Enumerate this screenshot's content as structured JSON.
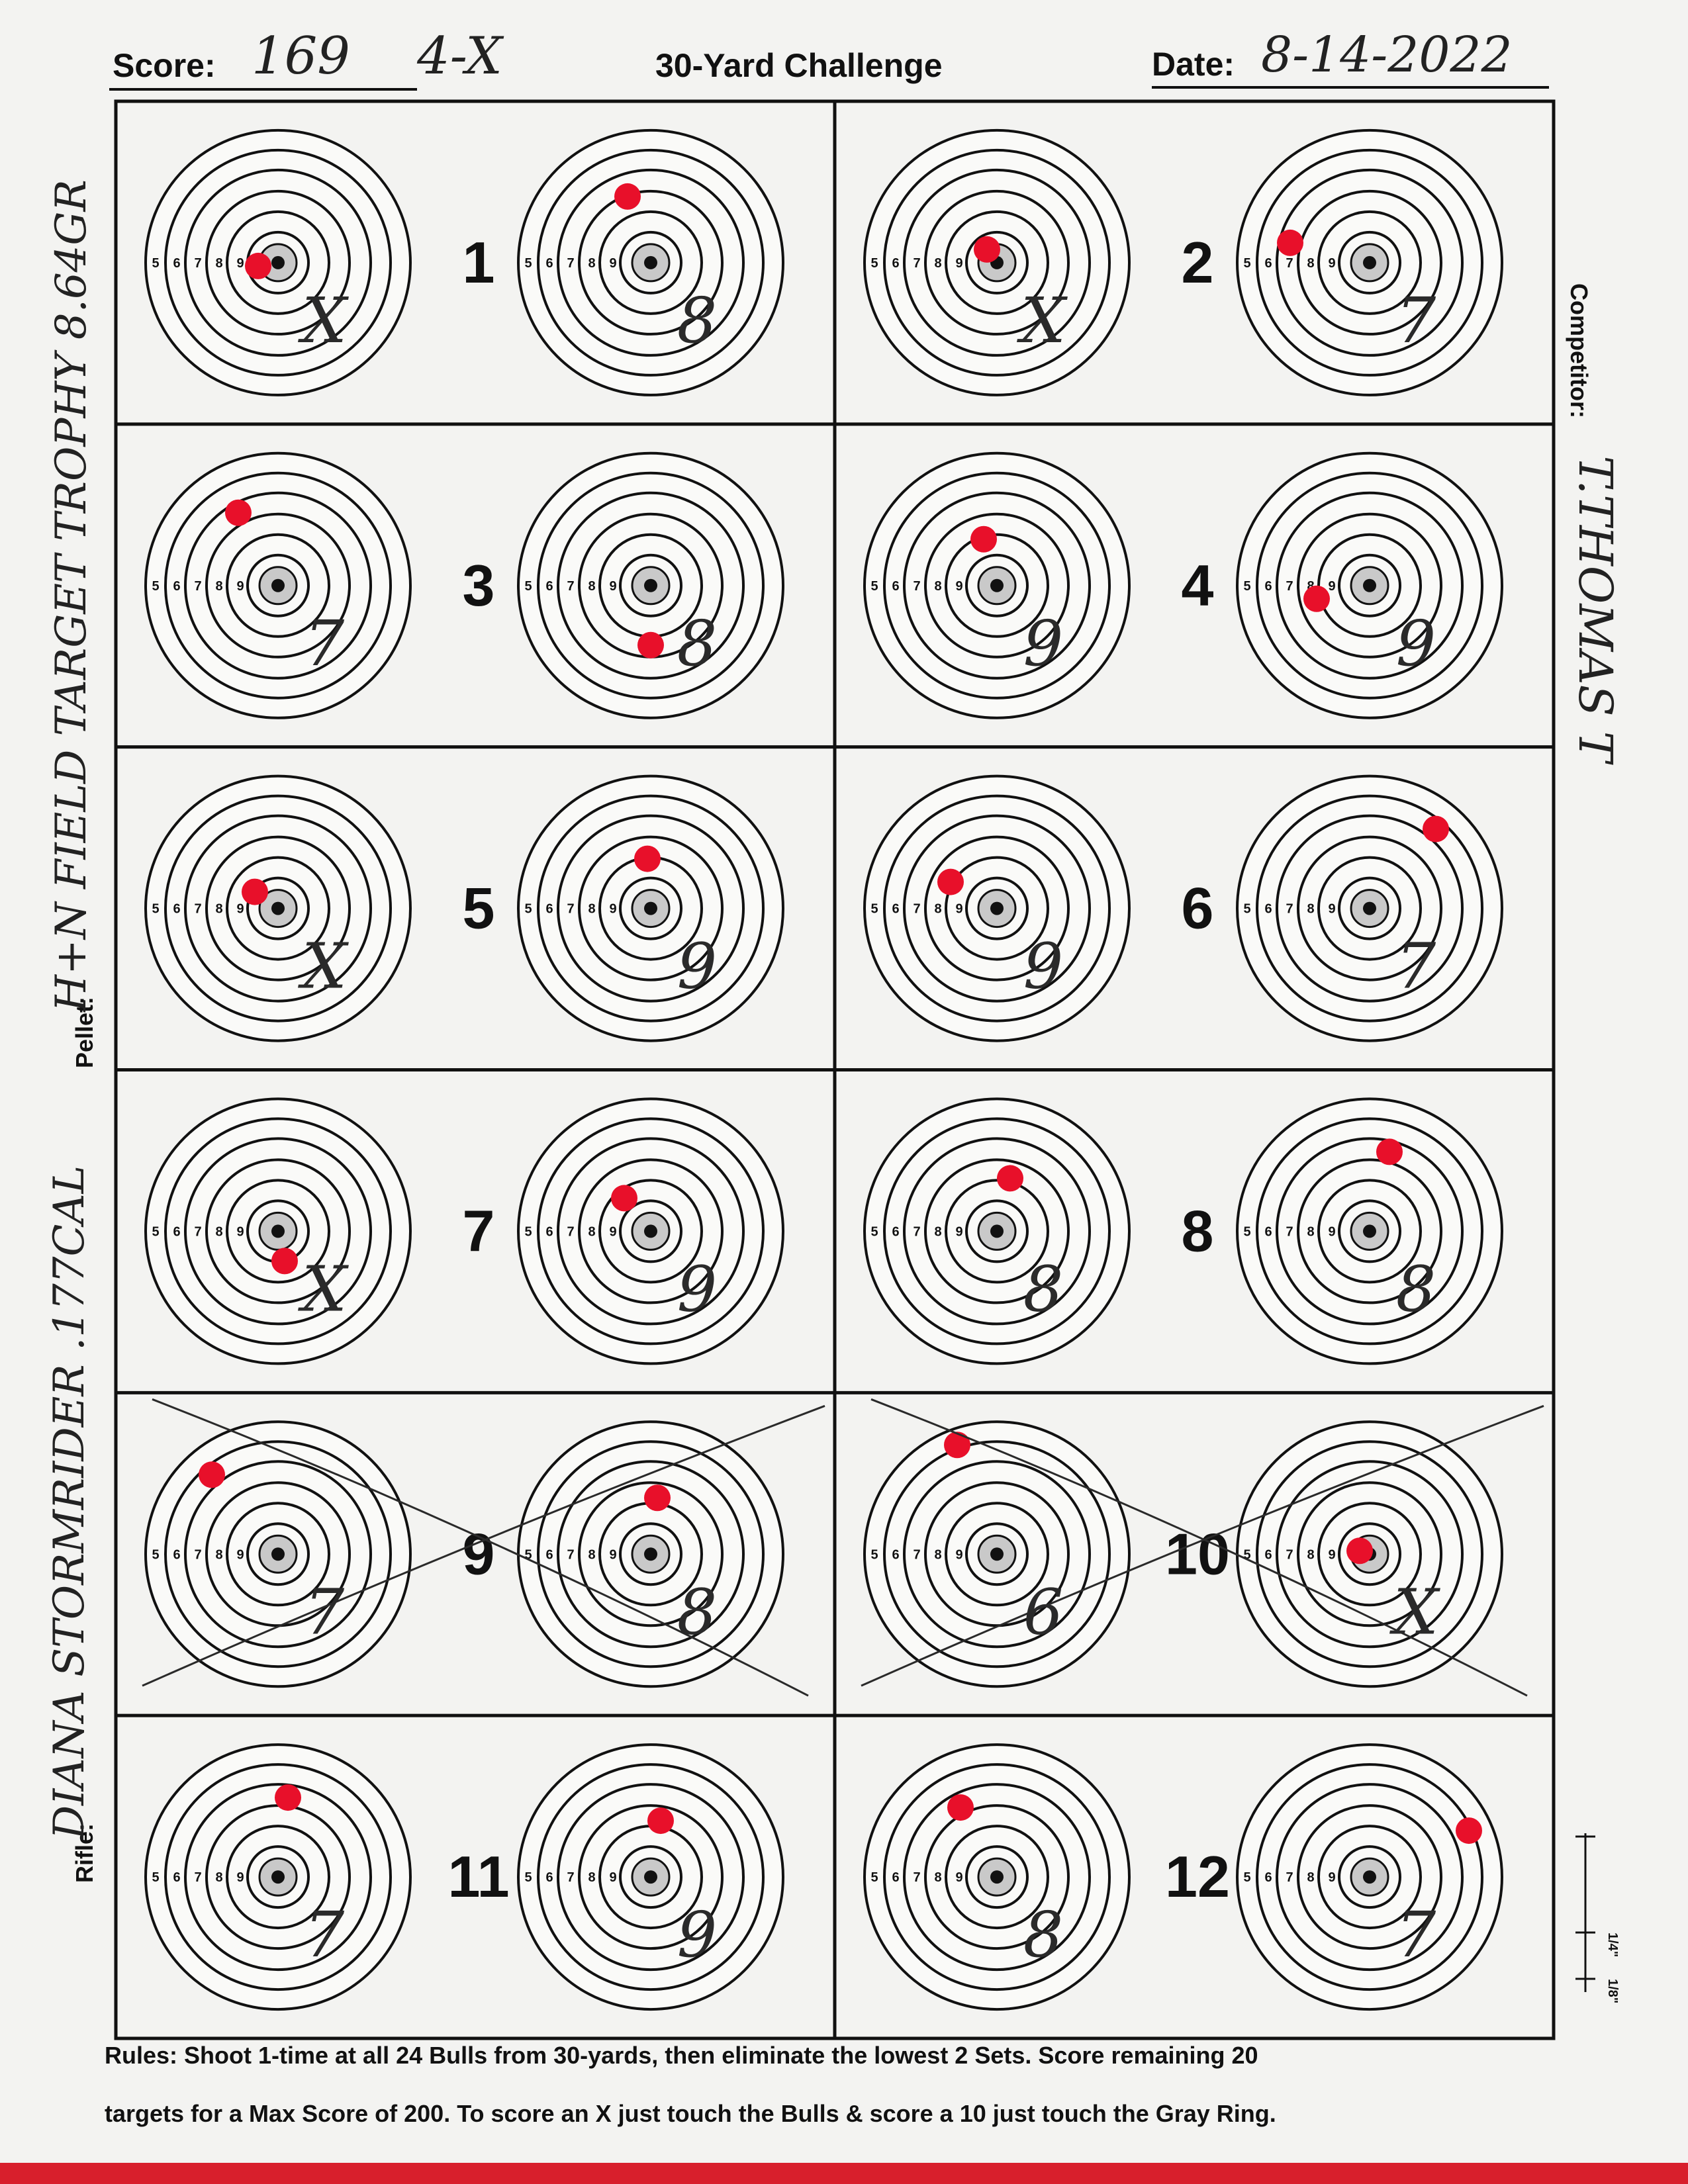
{
  "header": {
    "score_label": "Score:",
    "score_value": "169",
    "x_count": "4-X",
    "title": "30-Yard Challenge",
    "date_label": "Date:",
    "date_value": "8-14-2022"
  },
  "side": {
    "pellet_label": "Pellet:",
    "pellet_value": "H+N FIELD TARGET TROPHY 8.64GR",
    "rifle_label": "Rifle:",
    "rifle_value": "DIANA STORMRIDER .177CAL",
    "competitor_label": "Competitor:",
    "competitor_value": "T.THOMAS T"
  },
  "ring_numbers": [
    "5",
    "6",
    "7",
    "8",
    "9"
  ],
  "scale_marks": [
    "1/4\"",
    "1/8\""
  ],
  "sets": [
    {
      "number": "1",
      "scores": [
        "X",
        "8"
      ],
      "crossed": false
    },
    {
      "number": "2",
      "scores": [
        "X",
        "7"
      ],
      "crossed": false
    },
    {
      "number": "3",
      "scores": [
        "7",
        "8"
      ],
      "crossed": false
    },
    {
      "number": "4",
      "scores": [
        "9",
        "9"
      ],
      "crossed": false
    },
    {
      "number": "5",
      "scores": [
        "X",
        "9"
      ],
      "crossed": false
    },
    {
      "number": "6",
      "scores": [
        "9",
        "7"
      ],
      "crossed": false
    },
    {
      "number": "7",
      "scores": [
        "X",
        "9"
      ],
      "crossed": false
    },
    {
      "number": "8",
      "scores": [
        "8",
        "8"
      ],
      "crossed": false
    },
    {
      "number": "9",
      "scores": [
        "7",
        "8"
      ],
      "crossed": true
    },
    {
      "number": "10",
      "scores": [
        "6",
        "X"
      ],
      "crossed": true
    },
    {
      "number": "11",
      "scores": [
        "7",
        "9"
      ],
      "crossed": false
    },
    {
      "number": "12",
      "scores": [
        "8",
        "7"
      ],
      "crossed": false
    }
  ],
  "rules": {
    "line1": "Rules: Shoot 1-time at all 24 Bulls from 30-yards, then eliminate the lowest 2 Sets. Score remaining 20",
    "line2": "targets for a Max Score of 200. To score an X just touch the Bulls & score a 10 just touch the Gray Ring."
  },
  "colors": {
    "hole": "#e8102a",
    "bottom_bar": "#d81f2c",
    "ink": "#111111",
    "pencil": "#2a2a2a"
  }
}
